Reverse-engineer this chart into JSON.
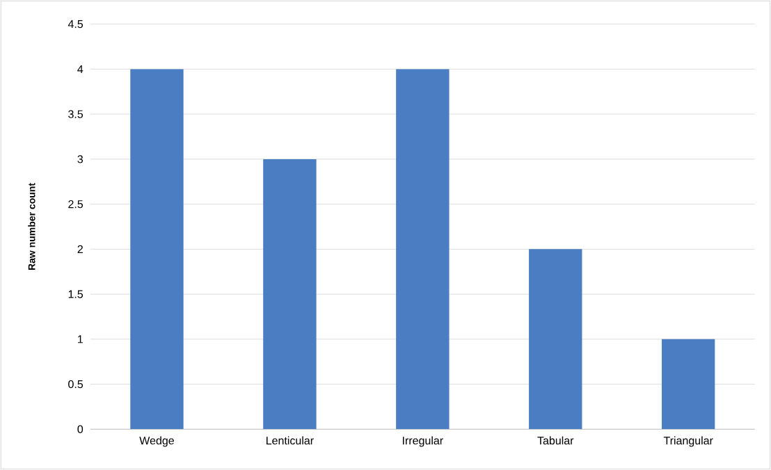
{
  "chart_data": {
    "type": "bar",
    "ylabel": "Raw number count",
    "categories": [
      "Wedge",
      "Lenticular",
      "Irregular",
      "Tabular",
      "Triangular"
    ],
    "values": [
      4,
      3,
      4,
      2,
      1
    ],
    "color": "#4a7dc1",
    "ylim": [
      0,
      4.5
    ],
    "yticks": [
      0,
      0.5,
      1,
      1.5,
      2,
      2.5,
      3,
      3.5,
      4,
      4.5
    ],
    "grid": "y"
  }
}
